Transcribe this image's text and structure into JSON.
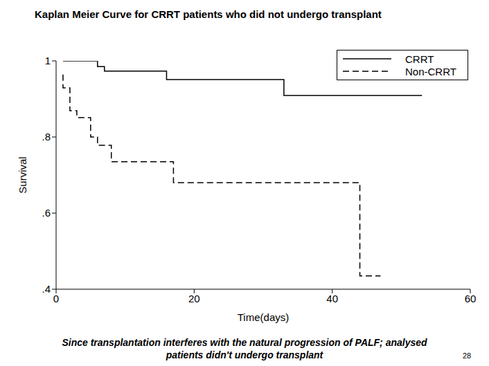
{
  "chart_data": {
    "type": "line",
    "title": "Kaplan Meier Curve for CRRT patients who did not undergo transplant",
    "x_label": "Time(days)",
    "y_label": "Survival",
    "xlim": [
      0,
      60
    ],
    "xticks": [
      0,
      20,
      40,
      60
    ],
    "ylim": [
      0.4,
      1
    ],
    "yticks": [
      {
        "value": 0.4,
        "label": ".4"
      },
      {
        "value": 0.6,
        "label": ".6"
      },
      {
        "value": 0.8,
        "label": ".8"
      },
      1
    ],
    "grid": false,
    "legend": "top-right",
    "series": [
      {
        "name": "CRRT",
        "color": "#000000",
        "line_style": "solid",
        "x": [
          1,
          6,
          7,
          16,
          33,
          53
        ],
        "values": [
          1,
          0.985,
          0.973,
          0.951,
          0.909,
          0.909
        ]
      },
      {
        "name": "Non-CRRT",
        "color": "#000000",
        "line_style": "dashed",
        "x": [
          1,
          1,
          2,
          3,
          5,
          6,
          8,
          17,
          44,
          47
        ],
        "values": [
          0.964,
          0.929,
          0.869,
          0.851,
          0.8,
          0.778,
          0.735,
          0.68,
          0.435,
          0.435
        ]
      }
    ],
    "annotations": [
      "Since transplantation interferes with the natural progression of PALF; analysed",
      "patients didn't undergo transplant",
      "28"
    ]
  }
}
